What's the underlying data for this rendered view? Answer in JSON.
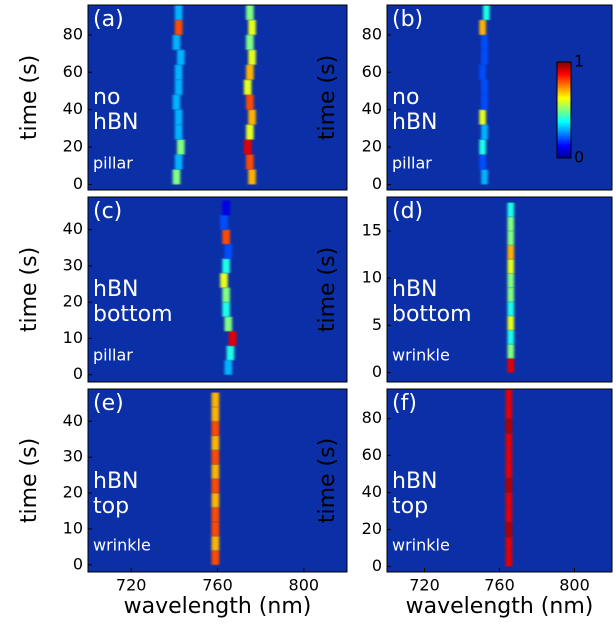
{
  "chart_data": [
    {
      "type": "heatmap",
      "panel": "(a)",
      "annotation": [
        "no",
        "hBN"
      ],
      "note": "pillar",
      "ylabel": "time (s)",
      "xlim": [
        700,
        820
      ],
      "ylim": [
        -3,
        96
      ],
      "yticks": [
        0,
        20,
        40,
        60,
        80
      ],
      "time": [
        0,
        8,
        16,
        24,
        32,
        40,
        48,
        56,
        64,
        72,
        80,
        88
      ],
      "peaks": [
        {
          "x": [
            776,
            775,
            774,
            775,
            776,
            775,
            774,
            775,
            776,
            775,
            776,
            775
          ],
          "values": [
            0.7,
            0.8,
            0.9,
            0.6,
            0.7,
            0.8,
            0.6,
            0.7,
            0.6,
            0.5,
            0.6,
            0.5
          ]
        },
        {
          "x": [
            741,
            742,
            743,
            742,
            742,
            741,
            742,
            742,
            743,
            741,
            742,
            742
          ],
          "values": [
            0.5,
            0.3,
            0.5,
            0.3,
            0.3,
            0.3,
            0.3,
            0.3,
            0.3,
            0.3,
            0.8,
            0.3
          ]
        }
      ]
    },
    {
      "type": "heatmap",
      "panel": "(b)",
      "annotation": [
        "no",
        "hBN"
      ],
      "note": "pillar",
      "ylabel": "time (s)",
      "xlim": [
        700,
        820
      ],
      "ylim": [
        -3,
        96
      ],
      "yticks": [
        0,
        20,
        40,
        60,
        80
      ],
      "time": [
        0,
        8,
        16,
        24,
        32,
        40,
        48,
        56,
        64,
        72,
        80,
        88
      ],
      "peaks": [
        {
          "x": [
            752,
            751,
            751,
            752,
            751,
            752,
            752,
            751,
            752,
            752,
            751,
            753
          ],
          "values": [
            0.3,
            0.2,
            0.4,
            0.3,
            0.6,
            0.2,
            0.2,
            0.2,
            0.2,
            0.2,
            0.7,
            0.4
          ]
        }
      ],
      "colorbar": {
        "lim": [
          0,
          1
        ],
        "ticks": [
          0,
          1
        ]
      }
    },
    {
      "type": "heatmap",
      "panel": "(c)",
      "annotation": [
        "hBN",
        "bottom"
      ],
      "note": "pillar",
      "ylabel": "time (s)",
      "xlim": [
        700,
        820
      ],
      "ylim": [
        -2,
        49
      ],
      "yticks": [
        0,
        10,
        20,
        30,
        40
      ],
      "time": [
        0,
        4,
        8,
        12,
        16,
        20,
        24,
        28,
        32,
        36,
        40,
        44
      ],
      "peaks": [
        {
          "x": [
            765,
            766,
            767,
            765,
            764,
            764,
            763,
            764,
            765,
            764,
            763,
            764
          ],
          "values": [
            0.3,
            0.4,
            0.9,
            0.5,
            0.4,
            0.5,
            0.6,
            0.4,
            0.2,
            0.8,
            0.2,
            0.1
          ]
        }
      ]
    },
    {
      "type": "heatmap",
      "panel": "(d)",
      "annotation": [
        "hBN",
        "bottom"
      ],
      "note": "wrinkle",
      "ylabel": "time (s)",
      "xlim": [
        700,
        820
      ],
      "ylim": [
        -1,
        18.6
      ],
      "yticks": [
        0,
        5,
        10,
        15
      ],
      "time": [
        0,
        1.5,
        3,
        4.5,
        6,
        7.5,
        9,
        10.5,
        12,
        13.5,
        15,
        16.5
      ],
      "peaks": [
        {
          "x": [
            766,
            766,
            766,
            766,
            766,
            766,
            766,
            766,
            766,
            766,
            766,
            766
          ],
          "values": [
            0.9,
            0.5,
            0.4,
            0.6,
            0.4,
            0.5,
            0.5,
            0.6,
            0.7,
            0.5,
            0.5,
            0.4
          ]
        }
      ]
    },
    {
      "type": "heatmap",
      "panel": "(e)",
      "annotation": [
        "hBN",
        "top"
      ],
      "note": "wrinkle",
      "ylabel": "time (s)",
      "xlabel": "wavelength (nm)",
      "xlim": [
        700,
        820
      ],
      "xticks": [
        720,
        760,
        800
      ],
      "ylim": [
        -2,
        49
      ],
      "yticks": [
        0,
        10,
        20,
        30,
        40
      ],
      "time": [
        0,
        4,
        8,
        12,
        16,
        20,
        24,
        28,
        32,
        36,
        40,
        44
      ],
      "peaks": [
        {
          "x": [
            759,
            759,
            759,
            759,
            759,
            759,
            759,
            759,
            759,
            759,
            759,
            759
          ],
          "values": [
            0.8,
            0.7,
            0.8,
            0.8,
            0.7,
            0.8,
            0.7,
            0.8,
            0.7,
            0.8,
            0.7,
            0.7
          ]
        }
      ]
    },
    {
      "type": "heatmap",
      "panel": "(f)",
      "annotation": [
        "hBN",
        "top"
      ],
      "note": "wrinkle",
      "ylabel": "time (s)",
      "xlabel": "wavelength (nm)",
      "xlim": [
        700,
        820
      ],
      "xticks": [
        720,
        760,
        800
      ],
      "ylim": [
        -3,
        96
      ],
      "yticks": [
        0,
        20,
        40,
        60,
        80
      ],
      "time": [
        0,
        8,
        16,
        24,
        32,
        40,
        48,
        56,
        64,
        72,
        80,
        88
      ],
      "peaks": [
        {
          "x": [
            765,
            765,
            765,
            765,
            765,
            765,
            765,
            765,
            765,
            765,
            765,
            765
          ],
          "values": [
            0.9,
            0.9,
            0.95,
            0.9,
            0.9,
            0.95,
            0.9,
            0.9,
            0.9,
            0.95,
            0.9,
            0.9
          ]
        }
      ]
    }
  ]
}
